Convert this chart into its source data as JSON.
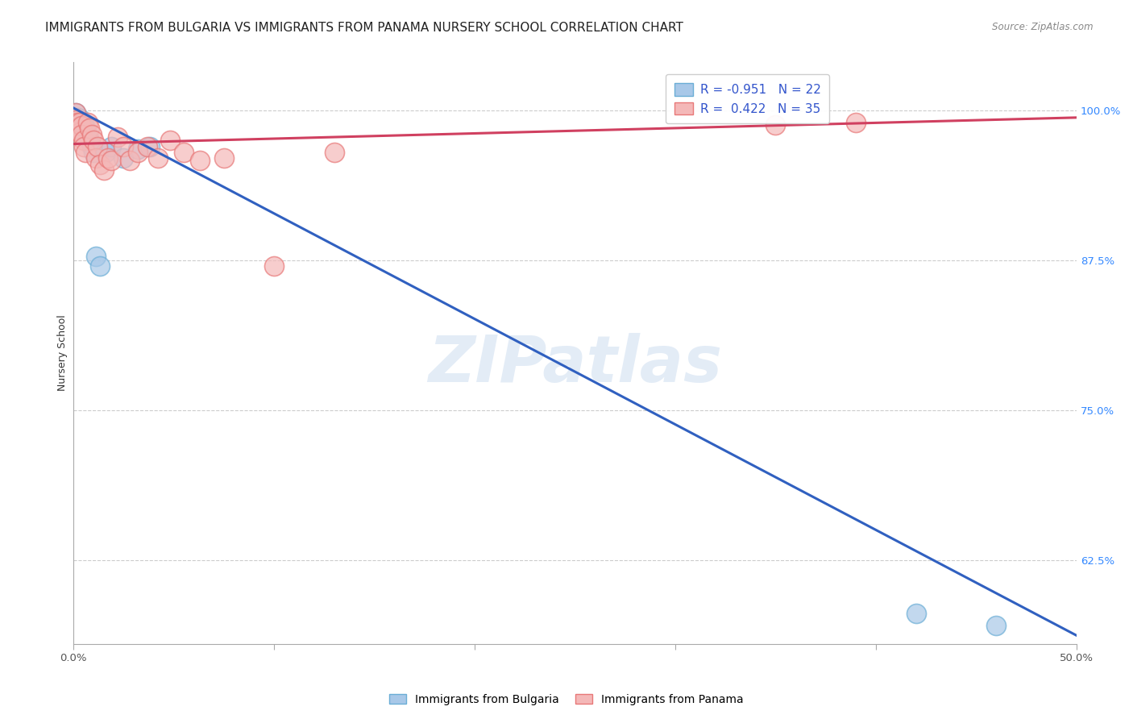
{
  "title": "IMMIGRANTS FROM BULGARIA VS IMMIGRANTS FROM PANAMA NURSERY SCHOOL CORRELATION CHART",
  "source": "Source: ZipAtlas.com",
  "ylabel": "Nursery School",
  "ytick_labels": [
    "100.0%",
    "87.5%",
    "75.0%",
    "62.5%"
  ],
  "ytick_values": [
    1.0,
    0.875,
    0.75,
    0.625
  ],
  "xlim": [
    0.0,
    0.5
  ],
  "ylim": [
    0.555,
    1.04
  ],
  "bulgaria_color": "#a8c8e8",
  "bulgaria_edge_color": "#6baed6",
  "panama_color": "#f4b8b8",
  "panama_edge_color": "#e87878",
  "bulgaria_line_color": "#3060c0",
  "panama_line_color": "#d04060",
  "bulgaria_R": -0.951,
  "bulgaria_N": 22,
  "panama_R": 0.422,
  "panama_N": 35,
  "watermark": "ZIPatlas",
  "bulgaria_scatter_x": [
    0.001,
    0.002,
    0.002,
    0.003,
    0.003,
    0.004,
    0.004,
    0.005,
    0.006,
    0.007,
    0.008,
    0.009,
    0.01,
    0.011,
    0.013,
    0.016,
    0.019,
    0.025,
    0.032,
    0.038,
    0.42,
    0.46
  ],
  "bulgaria_scatter_y": [
    0.998,
    0.994,
    0.99,
    0.987,
    0.993,
    0.989,
    0.982,
    0.99,
    0.985,
    0.98,
    0.975,
    0.97,
    0.965,
    0.878,
    0.87,
    0.965,
    0.97,
    0.96,
    0.968,
    0.97,
    0.58,
    0.57
  ],
  "panama_scatter_x": [
    0.001,
    0.001,
    0.002,
    0.002,
    0.003,
    0.003,
    0.004,
    0.004,
    0.005,
    0.005,
    0.006,
    0.007,
    0.008,
    0.009,
    0.01,
    0.011,
    0.012,
    0.013,
    0.015,
    0.017,
    0.019,
    0.022,
    0.025,
    0.028,
    0.032,
    0.037,
    0.042,
    0.048,
    0.055,
    0.063,
    0.075,
    0.1,
    0.13,
    0.35,
    0.39
  ],
  "panama_scatter_y": [
    0.998,
    0.992,
    0.99,
    0.985,
    0.982,
    0.99,
    0.987,
    0.98,
    0.975,
    0.97,
    0.965,
    0.99,
    0.985,
    0.98,
    0.975,
    0.96,
    0.97,
    0.955,
    0.95,
    0.96,
    0.958,
    0.978,
    0.97,
    0.958,
    0.965,
    0.97,
    0.96,
    0.975,
    0.965,
    0.958,
    0.96,
    0.87,
    0.965,
    0.988,
    0.99
  ],
  "bulgaria_line_x": [
    0.0,
    0.5
  ],
  "bulgaria_line_y": [
    1.002,
    0.562
  ],
  "panama_line_x": [
    0.0,
    0.5
  ],
  "panama_line_y": [
    0.972,
    0.994
  ],
  "grid_color": "#cccccc",
  "title_fontsize": 11,
  "axis_label_fontsize": 9,
  "tick_fontsize": 9.5,
  "scatter_size": 300,
  "line_width": 2.2
}
